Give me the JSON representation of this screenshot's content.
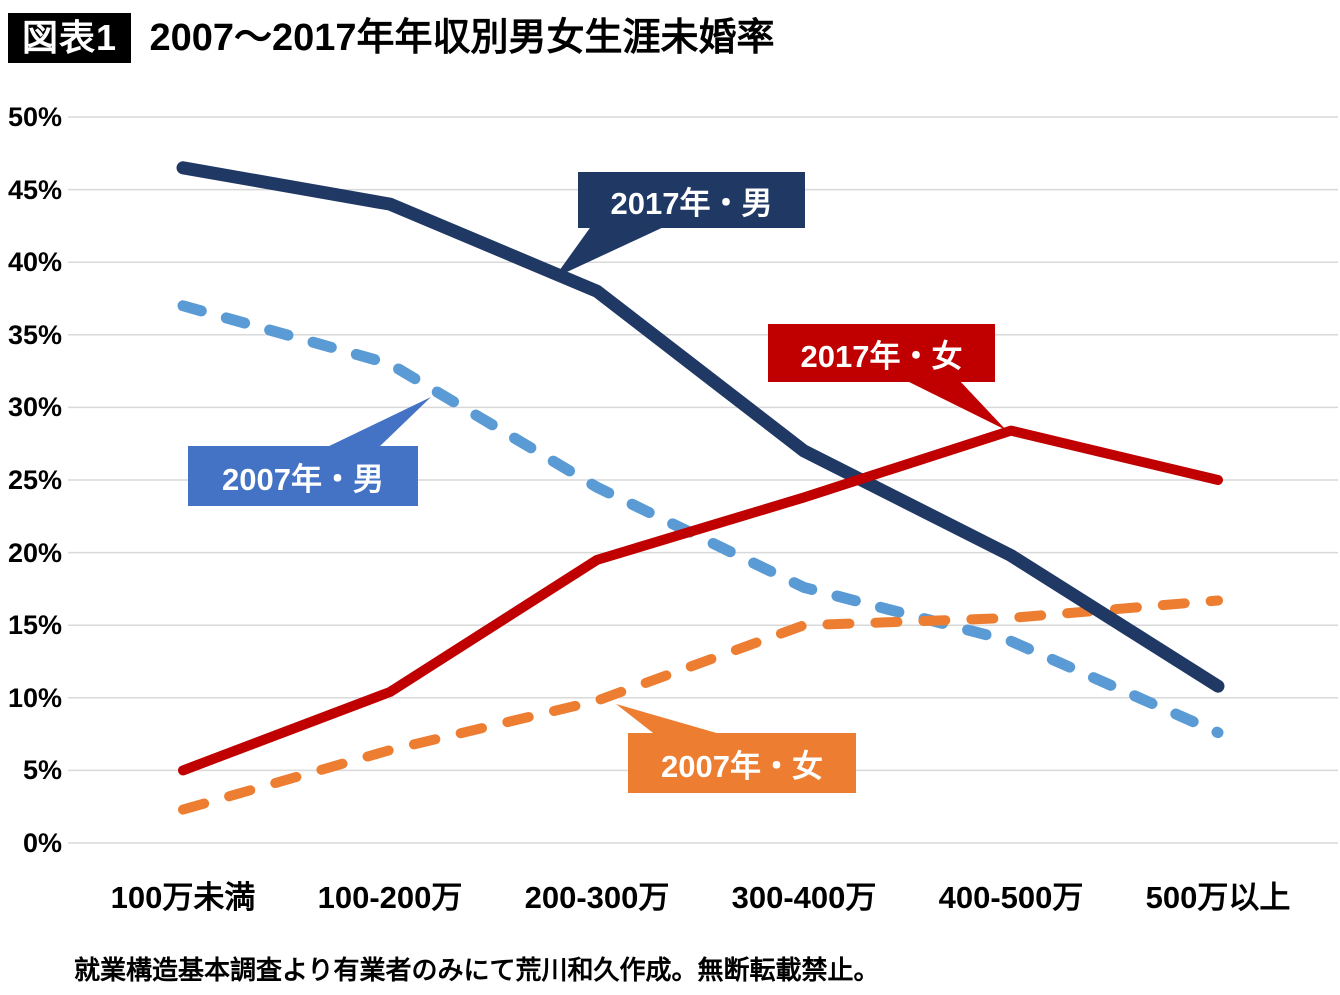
{
  "header": {
    "badge": "図表1",
    "title": "2007～2017年年収別男女生涯未婚率"
  },
  "chart_data": {
    "type": "line",
    "title": "2007～2017年年収別男女生涯未婚率",
    "categories": [
      "100万未満",
      "100-200万",
      "200-300万",
      "300-400万",
      "400-500万",
      "500万以上"
    ],
    "series": [
      {
        "name": "2017年・男",
        "color": "#1F3864",
        "line_style": "solid",
        "values": [
          46.5,
          44.0,
          38.0,
          27.0,
          19.8,
          10.8
        ]
      },
      {
        "name": "2017年・女",
        "color": "#C00000",
        "line_style": "solid",
        "values": [
          5.0,
          10.4,
          19.5,
          23.8,
          28.4,
          25.0
        ]
      },
      {
        "name": "2007年・男",
        "color": "#5B9BD5",
        "line_style": "dashed",
        "values": [
          37.0,
          33.0,
          24.5,
          17.6,
          13.9,
          7.6
        ]
      },
      {
        "name": "2007年・女",
        "color": "#ED7D31",
        "line_style": "dashed",
        "values": [
          2.3,
          6.4,
          9.8,
          15.0,
          15.5,
          16.7
        ]
      }
    ],
    "xlabel": "",
    "ylabel": "",
    "ylim": [
      0,
      50
    ],
    "y_ticks": [
      "0%",
      "5%",
      "10%",
      "15%",
      "20%",
      "25%",
      "30%",
      "35%",
      "40%",
      "45%",
      "50%"
    ],
    "grid": true,
    "gridline_color": "#D9D9D9",
    "legend_position": "callouts"
  },
  "callouts": [
    {
      "label": "2017年・男",
      "color": "#1F3864"
    },
    {
      "label": "2017年・女",
      "color": "#C00000"
    },
    {
      "label": "2007年・男",
      "color": "#4472C4"
    },
    {
      "label": "2007年・女",
      "color": "#ED7D31"
    }
  ],
  "footer": {
    "note": "就業構造基本調査より有業者のみにて荒川和久作成。無断転載禁止。"
  }
}
